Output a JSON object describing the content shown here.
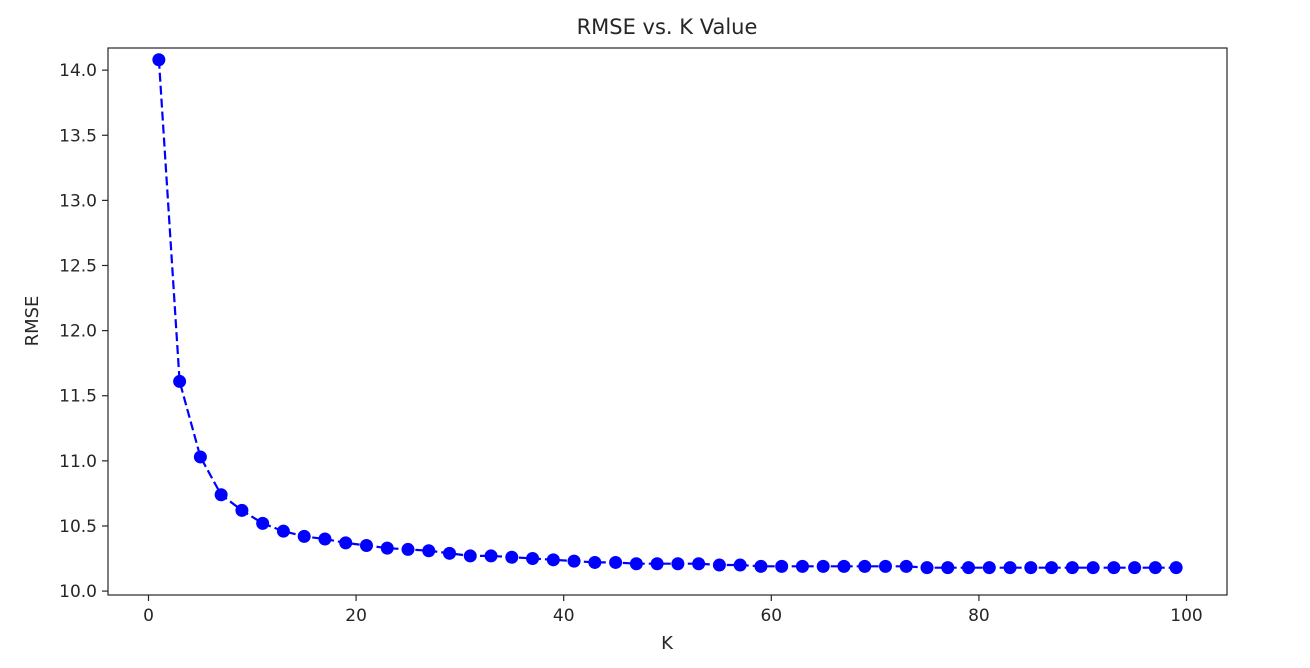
{
  "chart_data": {
    "type": "line",
    "title": "RMSE vs. K Value",
    "xlabel": "K",
    "ylabel": "RMSE",
    "xlim": [
      -3.9,
      103.9
    ],
    "ylim": [
      9.97,
      14.17
    ],
    "xticks": [
      0,
      20,
      40,
      60,
      80,
      100
    ],
    "yticks": [
      10.0,
      10.5,
      11.0,
      11.5,
      12.0,
      12.5,
      13.0,
      13.5,
      14.0
    ],
    "grid": false,
    "colors": {
      "line": "#0000ff",
      "marker": "#0000ff",
      "frame": "#262626"
    },
    "line_style": "dashed",
    "marker": "circle",
    "series": [
      {
        "x": [
          1,
          3,
          5,
          7,
          9,
          11,
          13,
          15,
          17,
          19,
          21,
          23,
          25,
          27,
          29,
          31,
          33,
          35,
          37,
          39,
          41,
          43,
          45,
          47,
          49,
          51,
          53,
          55,
          57,
          59,
          61,
          63,
          65,
          67,
          69,
          71,
          73,
          75,
          77,
          79,
          81,
          83,
          85,
          87,
          89,
          91,
          93,
          95,
          97,
          99
        ],
        "values": [
          14.08,
          11.61,
          11.03,
          10.74,
          10.62,
          10.52,
          10.46,
          10.42,
          10.4,
          10.37,
          10.35,
          10.33,
          10.32,
          10.31,
          10.29,
          10.27,
          10.27,
          10.26,
          10.25,
          10.24,
          10.23,
          10.22,
          10.22,
          10.21,
          10.21,
          10.21,
          10.21,
          10.2,
          10.2,
          10.19,
          10.19,
          10.19,
          10.19,
          10.19,
          10.19,
          10.19,
          10.19,
          10.18,
          10.18,
          10.18,
          10.18,
          10.18,
          10.18,
          10.18,
          10.18,
          10.18,
          10.18,
          10.18,
          10.18,
          10.18
        ]
      }
    ]
  }
}
